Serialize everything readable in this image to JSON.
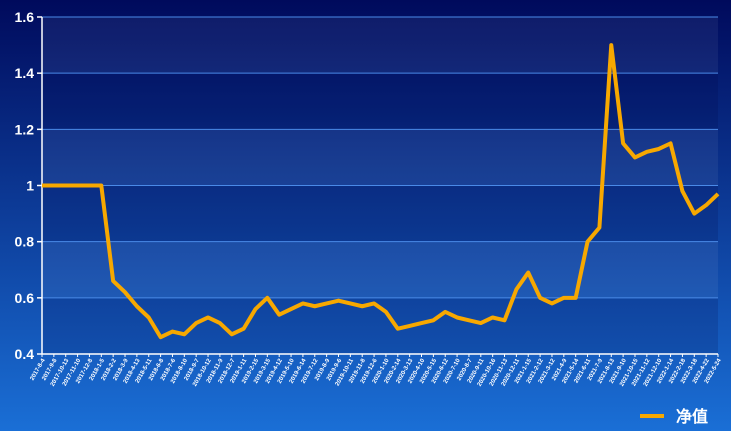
{
  "chart_data": {
    "type": "line",
    "categories": [
      "2017-8-4",
      "2017-9-8",
      "2017-10-13",
      "2017-11-10",
      "2017-12-8",
      "2018-1-5",
      "2018-2-2",
      "2018-3-9",
      "2018-4-13",
      "2018-5-11",
      "2018-6-8",
      "2018-7-6",
      "2018-8-10",
      "2018-9-7",
      "2018-10-12",
      "2018-11-9",
      "2018-12-7",
      "2019-1-11",
      "2019-2-15",
      "2019-3-15",
      "2019-4-12",
      "2019-5-10",
      "2019-6-14",
      "2019-7-12",
      "2019-8-9",
      "2019-9-6",
      "2019-10-11",
      "2019-11-8",
      "2019-12-6",
      "2020-1-10",
      "2020-2-14",
      "2020-3-13",
      "2020-4-10",
      "2020-5-15",
      "2020-6-12",
      "2020-7-10",
      "2020-8-7",
      "2020-9-11",
      "2020-10-16",
      "2020-11-13",
      "2020-12-11",
      "2021-1-15",
      "2021-2-12",
      "2021-3-12",
      "2021-4-9",
      "2021-5-14",
      "2021-6-11",
      "2021-7-9",
      "2021-8-13",
      "2021-9-10",
      "2021-10-15",
      "2021-11-12",
      "2021-12-10",
      "2022-1-14",
      "2022-2-18",
      "2022-3-18",
      "2022-4-22",
      "2022-5-24"
    ],
    "series": [
      {
        "name": "净值",
        "color": "#f7a800",
        "values": [
          1.0,
          1.0,
          1.0,
          1.0,
          1.0,
          1.0,
          0.66,
          0.62,
          0.57,
          0.53,
          0.46,
          0.48,
          0.47,
          0.51,
          0.53,
          0.51,
          0.47,
          0.49,
          0.56,
          0.6,
          0.54,
          0.56,
          0.58,
          0.57,
          0.58,
          0.59,
          0.58,
          0.57,
          0.58,
          0.55,
          0.49,
          0.5,
          0.51,
          0.52,
          0.55,
          0.53,
          0.52,
          0.51,
          0.53,
          0.52,
          0.63,
          0.69,
          0.6,
          0.58,
          0.6,
          0.6,
          0.8,
          0.85,
          1.5,
          1.15,
          1.1,
          1.12,
          1.13,
          1.15,
          0.98,
          0.9,
          0.93,
          0.97
        ]
      }
    ],
    "ylim": [
      0.4,
      1.6
    ],
    "yticks": [
      0.4,
      0.6,
      0.8,
      1,
      1.2,
      1.4,
      1.6
    ],
    "grid": true,
    "legend": "bottom-right"
  }
}
